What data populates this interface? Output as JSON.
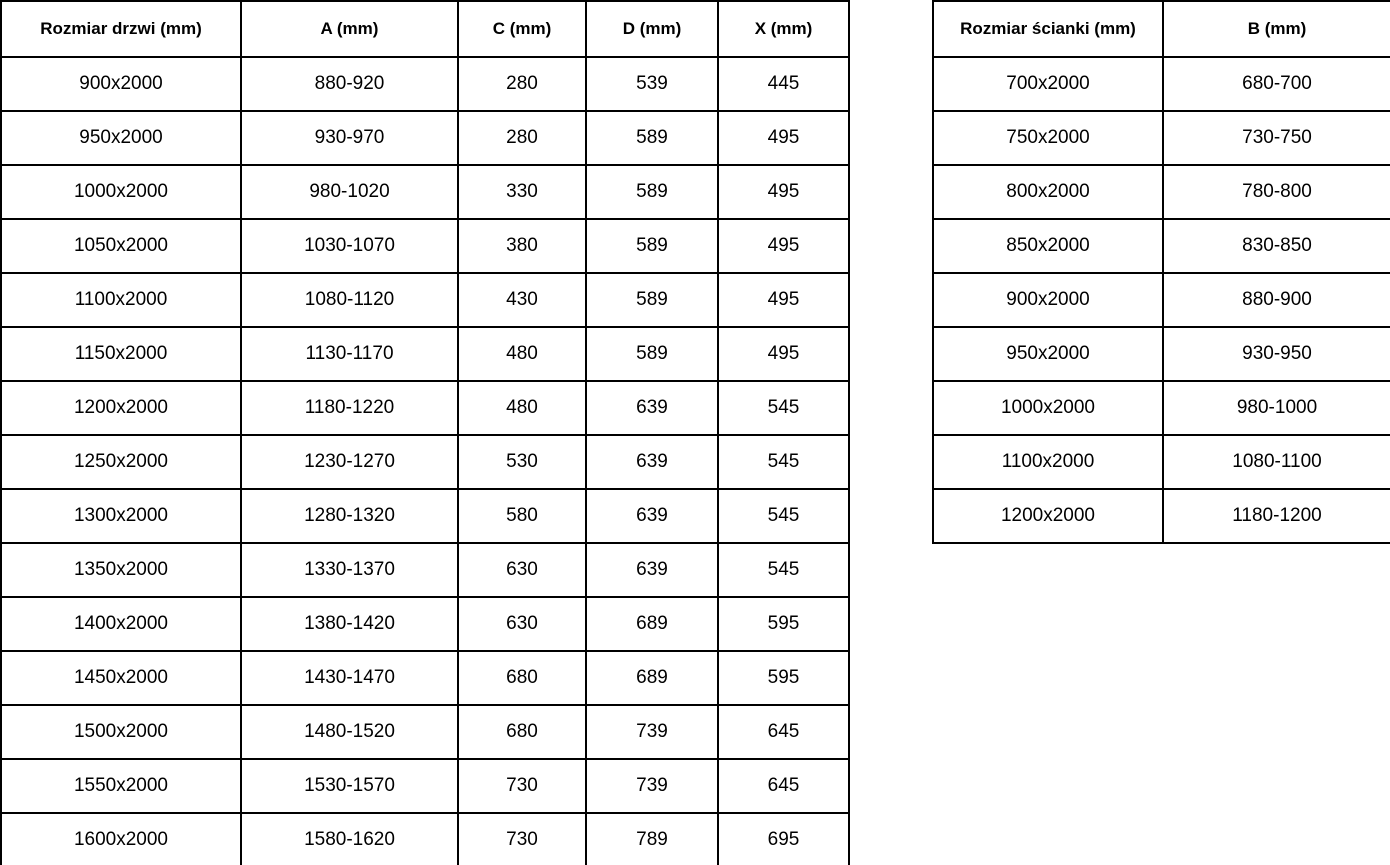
{
  "page": {
    "background_color": "#ffffff",
    "text_color": "#000000",
    "border_color": "#000000"
  },
  "door_table": {
    "headers": [
      "Rozmiar drzwi (mm)",
      "A (mm)",
      "C (mm)",
      "D (mm)",
      "X (mm)"
    ],
    "rows": [
      [
        "900x2000",
        "880-920",
        "280",
        "539",
        "445"
      ],
      [
        "950x2000",
        "930-970",
        "280",
        "589",
        "495"
      ],
      [
        "1000x2000",
        "980-1020",
        "330",
        "589",
        "495"
      ],
      [
        "1050x2000",
        "1030-1070",
        "380",
        "589",
        "495"
      ],
      [
        "1100x2000",
        "1080-1120",
        "430",
        "589",
        "495"
      ],
      [
        "1150x2000",
        "1130-1170",
        "480",
        "589",
        "495"
      ],
      [
        "1200x2000",
        "1180-1220",
        "480",
        "639",
        "545"
      ],
      [
        "1250x2000",
        "1230-1270",
        "530",
        "639",
        "545"
      ],
      [
        "1300x2000",
        "1280-1320",
        "580",
        "639",
        "545"
      ],
      [
        "1350x2000",
        "1330-1370",
        "630",
        "639",
        "545"
      ],
      [
        "1400x2000",
        "1380-1420",
        "630",
        "689",
        "595"
      ],
      [
        "1450x2000",
        "1430-1470",
        "680",
        "689",
        "595"
      ],
      [
        "1500x2000",
        "1480-1520",
        "680",
        "739",
        "645"
      ],
      [
        "1550x2000",
        "1530-1570",
        "730",
        "739",
        "645"
      ],
      [
        "1600x2000",
        "1580-1620",
        "730",
        "789",
        "695"
      ]
    ]
  },
  "wall_table": {
    "headers": [
      "Rozmiar ścianki (mm)",
      "B (mm)"
    ],
    "rows": [
      [
        "700x2000",
        "680-700"
      ],
      [
        "750x2000",
        "730-750"
      ],
      [
        "800x2000",
        "780-800"
      ],
      [
        "850x2000",
        "830-850"
      ],
      [
        "900x2000",
        "880-900"
      ],
      [
        "950x2000",
        "930-950"
      ],
      [
        "1000x2000",
        "980-1000"
      ],
      [
        "1100x2000",
        "1080-1100"
      ],
      [
        "1200x2000",
        "1180-1200"
      ]
    ]
  }
}
